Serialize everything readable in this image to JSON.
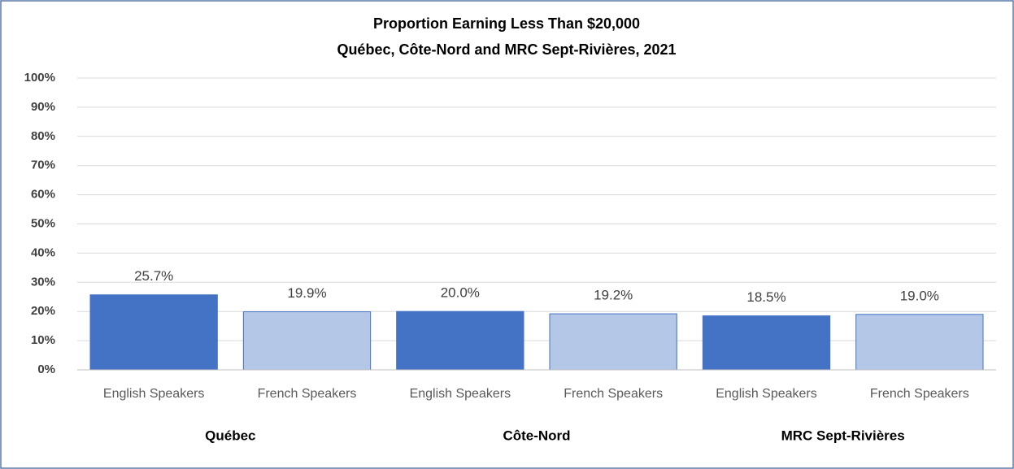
{
  "chart_data": {
    "type": "bar",
    "title": "Proportion Earning Less Than $20,000",
    "subtitle": "Québec, Côte-Nord and MRC Sept-Rivières, 2021",
    "categories": [
      "English Speakers",
      "French Speakers",
      "English Speakers",
      "French Speakers",
      "English Speakers",
      "French Speakers"
    ],
    "groups": [
      "Québec",
      "Côte-Nord",
      "MRC Sept-Rivières"
    ],
    "values": [
      25.7,
      19.9,
      20.0,
      19.2,
      18.5,
      19.0
    ],
    "value_labels": [
      "25.7%",
      "19.9%",
      "20.0%",
      "19.2%",
      "18.5%",
      "19.0%"
    ],
    "colors": [
      "#4472c4",
      "#b4c7e7",
      "#4472c4",
      "#b4c7e7",
      "#4472c4",
      "#b4c7e7"
    ],
    "ylim": [
      0,
      100
    ],
    "yticks": [
      {
        "value": 0,
        "label": "0%"
      },
      {
        "value": 10,
        "label": "10%"
      },
      {
        "value": 20,
        "label": "20%"
      },
      {
        "value": 30,
        "label": "30%"
      },
      {
        "value": 40,
        "label": "40%"
      },
      {
        "value": 50,
        "label": "50%"
      },
      {
        "value": 60,
        "label": "60%"
      },
      {
        "value": 70,
        "label": "70%"
      },
      {
        "value": 80,
        "label": "80%"
      },
      {
        "value": 90,
        "label": "90%"
      },
      {
        "value": 100,
        "label": "100%"
      }
    ],
    "grid": true
  }
}
